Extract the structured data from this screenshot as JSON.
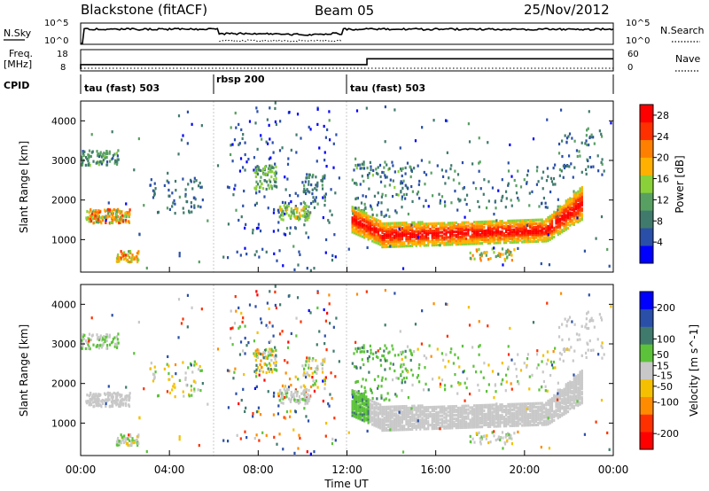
{
  "header": {
    "station": "Blackstone (fitACF)",
    "beam": "Beam 05",
    "date": "25/Nov/2012"
  },
  "panels": {
    "noise": {
      "left_label": "N.Sky",
      "right_label": "N.Search",
      "left_ticks": [
        "10^5",
        "10^0"
      ],
      "right_ticks": [
        "10^5",
        "10^0"
      ]
    },
    "frequency": {
      "left_label_line1": "Freq.",
      "left_label_line2": "[MHz]",
      "right_label": "Nave",
      "left_ticks": [
        "18",
        "8"
      ],
      "right_ticks": [
        "60",
        "0"
      ]
    },
    "cpid": {
      "label": "CPID",
      "segments": [
        "tau (fast) 503",
        "rbsp 200",
        "tau (fast) 503"
      ]
    }
  },
  "colors": {
    "power_scale": [
      "#0000ff",
      "#2a4fa8",
      "#407a6c",
      "#58a062",
      "#8ad038",
      "#ffb000",
      "#ff8000",
      "#ff3000",
      "#ff0000"
    ],
    "velocity_scale": [
      "#0000ff",
      "#2a4fa8",
      "#3f7a6c",
      "#5cc23a",
      "#c8c8c8",
      "#f4c000",
      "#ff8c00",
      "#ff3000",
      "#ff0000"
    ],
    "gray": "#c8c8c8"
  },
  "chart_data": {
    "type": "heatmap",
    "xlabel": "Time UT",
    "x_range": [
      "00:00",
      "24:00"
    ],
    "x_tick_labels": [
      "00:00",
      "04:00",
      "08:00",
      "12:00",
      "16:00",
      "20:00",
      "00:00"
    ],
    "mode_boundaries_ut": [
      "06:00",
      "12:00"
    ],
    "panels": [
      {
        "name": "power",
        "ylabel": "Slant Range [km]",
        "yticks": [
          1000,
          2000,
          3000,
          4000
        ],
        "ylim": [
          180,
          4500
        ],
        "colorbar_label": "Power [dB]",
        "colorbar_ticks": [
          4,
          8,
          12,
          16,
          20,
          24,
          28
        ],
        "colorbar_range": [
          0,
          30
        ]
      },
      {
        "name": "velocity",
        "ylabel": "Slant Range [km]",
        "yticks": [
          1000,
          2000,
          3000,
          4000
        ],
        "ylim": [
          180,
          4500
        ],
        "colorbar_label": "Velocity [m s^-1]",
        "colorbar_ticks": [
          200,
          100,
          50,
          15,
          -15,
          -50,
          -100,
          -200
        ],
        "colorbar_range": [
          -250,
          250
        ]
      }
    ],
    "noise_series": {
      "sky_log_level_first_half": 4.5,
      "search_log_level_rbsp": 0.4
    },
    "frequency_series": {
      "freq_mhz_before_1230": 10.8,
      "freq_mhz_after_1230": 14.5
    }
  }
}
